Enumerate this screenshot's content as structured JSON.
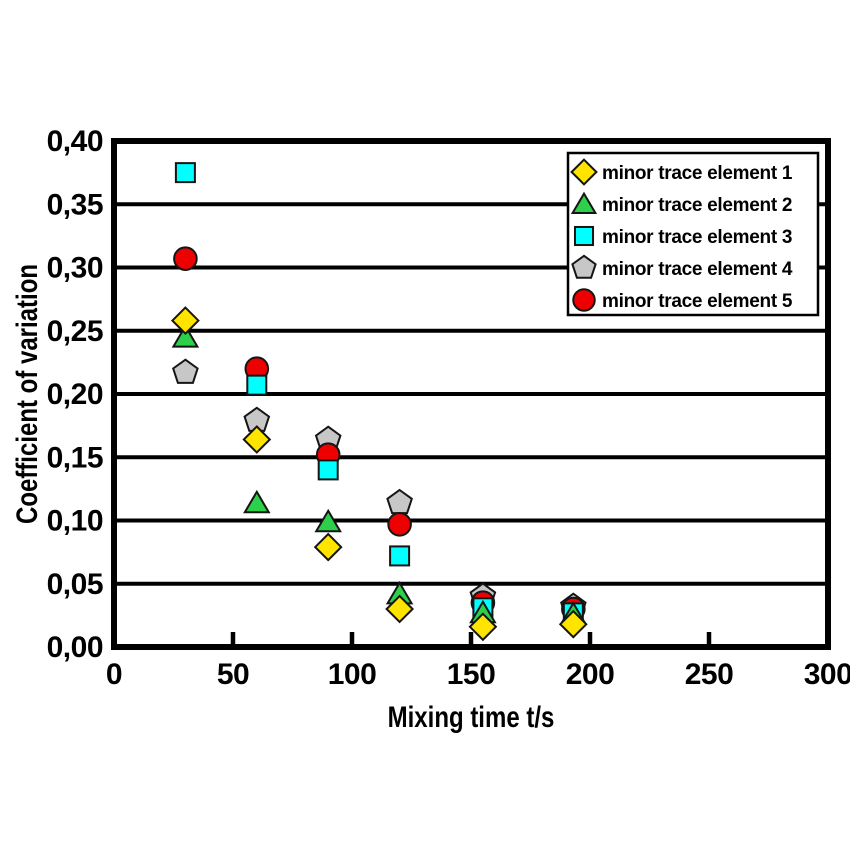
{
  "chart_data": {
    "type": "scatter",
    "title": "",
    "xlabel": "Mixing time t/s",
    "ylabel": "Coefficient of variation",
    "xlim": [
      0,
      300
    ],
    "ylim": [
      0,
      0.4
    ],
    "grid": "horizontal-only",
    "legend_position": "top-right inside plot",
    "xticks": [
      {
        "value": 0,
        "label": "0"
      },
      {
        "value": 50,
        "label": "50"
      },
      {
        "value": 100,
        "label": "100"
      },
      {
        "value": 150,
        "label": "150"
      },
      {
        "value": 200,
        "label": "200"
      },
      {
        "value": 250,
        "label": "250"
      },
      {
        "value": 300,
        "label": "300"
      }
    ],
    "yticks": [
      {
        "value": 0.0,
        "label": "0,00"
      },
      {
        "value": 0.05,
        "label": "0,05"
      },
      {
        "value": 0.1,
        "label": "0,10"
      },
      {
        "value": 0.15,
        "label": "0,15"
      },
      {
        "value": 0.2,
        "label": "0,20"
      },
      {
        "value": 0.25,
        "label": "0,25"
      },
      {
        "value": 0.3,
        "label": "0,30"
      },
      {
        "value": 0.35,
        "label": "0,35"
      },
      {
        "value": 0.4,
        "label": "0,40"
      }
    ],
    "x": [
      30,
      60,
      90,
      120,
      155,
      193
    ],
    "series": [
      {
        "name": "minor trace element 1",
        "marker": "diamond",
        "color": "#ffe400",
        "values": [
          0.258,
          0.164,
          0.079,
          0.03,
          0.016,
          0.018
        ]
      },
      {
        "name": "minor trace element 2",
        "marker": "triangle",
        "color": "#2dd04b",
        "values": [
          0.245,
          0.114,
          0.099,
          0.042,
          0.027,
          0.026
        ]
      },
      {
        "name": "minor trace element 3",
        "marker": "square",
        "color": "#00ffff",
        "values": [
          0.375,
          0.207,
          0.14,
          0.072,
          0.031,
          0.027
        ]
      },
      {
        "name": "minor trace element 4",
        "marker": "pentagon",
        "color": "#c7c7c7",
        "values": [
          0.217,
          0.179,
          0.164,
          0.114,
          0.04,
          0.032
        ]
      },
      {
        "name": "minor trace element 5",
        "marker": "circle",
        "color": "#ee0000",
        "values": [
          0.307,
          0.22,
          0.152,
          0.097,
          0.035,
          0.03
        ]
      }
    ],
    "draw_order": [
      3,
      4,
      2,
      1,
      0
    ],
    "colors": {
      "grid": "#000000",
      "frame": "#000000",
      "marker_outline": "#151515",
      "background": "#ffffff",
      "legend_background": "#ffffff",
      "legend_border": "#000000",
      "text": "#000000"
    }
  }
}
